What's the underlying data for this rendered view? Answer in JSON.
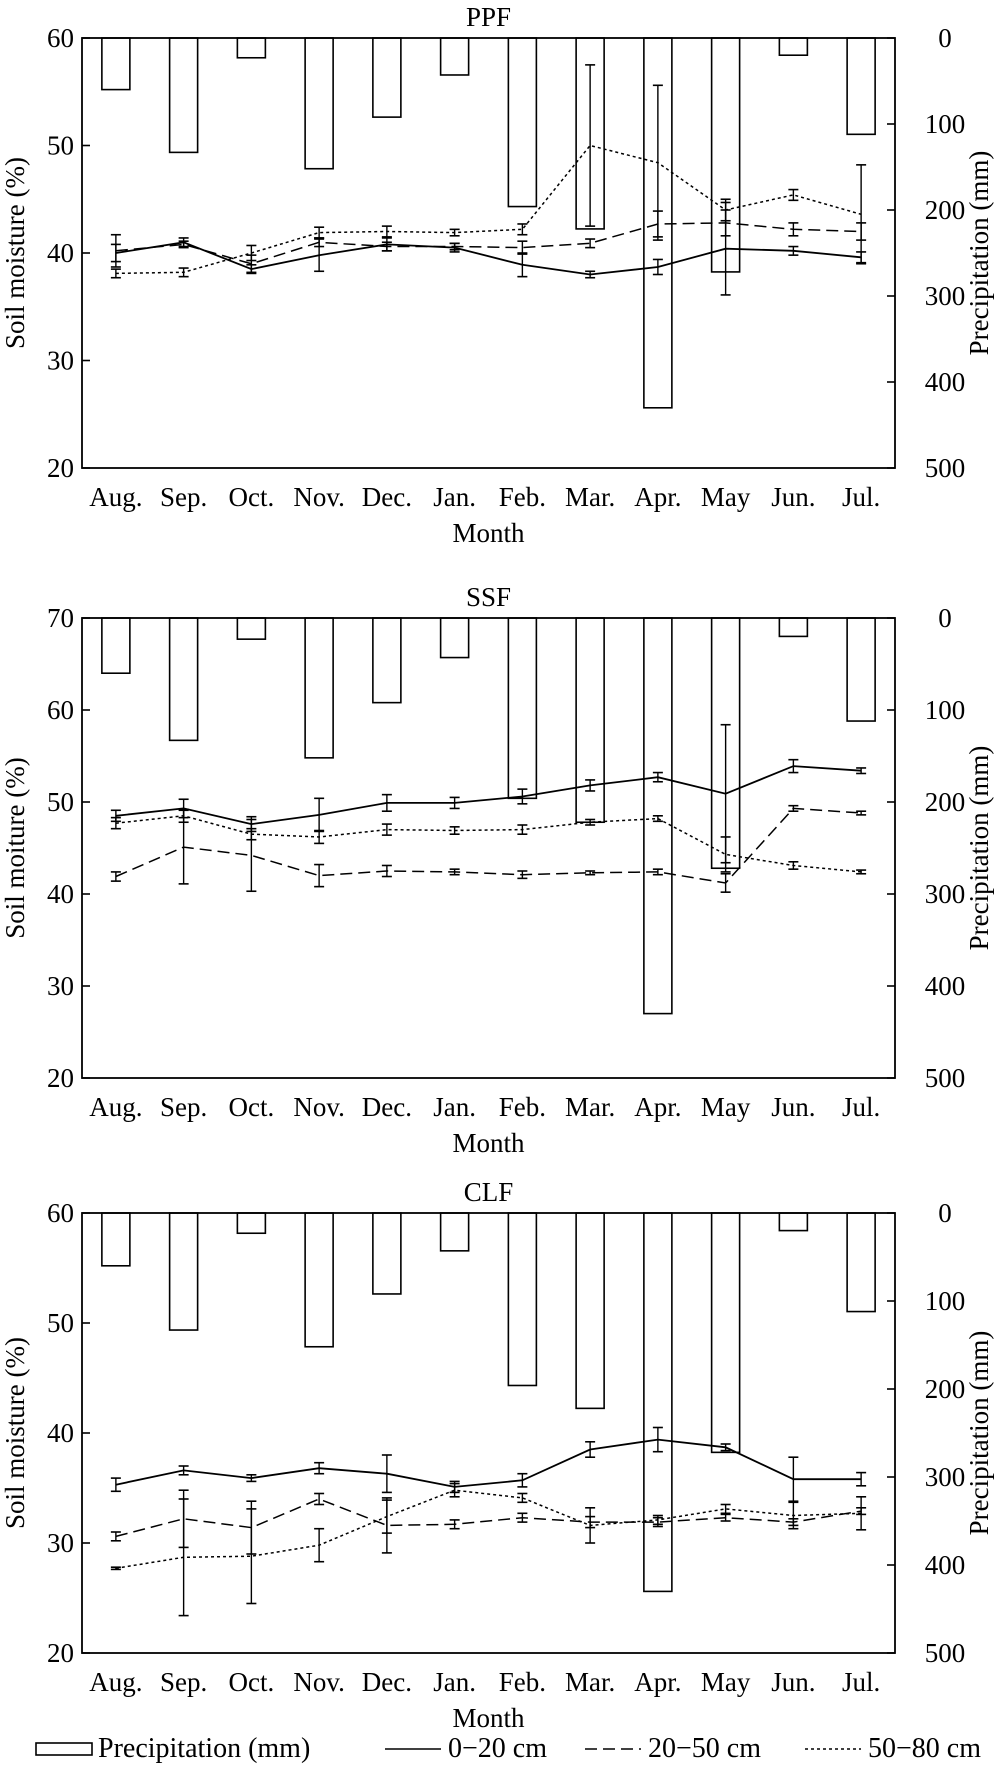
{
  "chart_data": [
    {
      "type": "bar+line",
      "title": "PPF",
      "xlabel": "Month",
      "ylabel": "Soil moisture (%)",
      "y2label": "Precipitation (mm)",
      "ylim": [
        20,
        60
      ],
      "y2lim": [
        0,
        500
      ],
      "y2_inverted": true,
      "categories": [
        "Aug.",
        "Sep.",
        "Oct.",
        "Nov.",
        "Dec.",
        "Jan.",
        "Feb.",
        "Mar.",
        "Apr.",
        "May",
        "Jun.",
        "Jul."
      ],
      "precipitation": [
        60,
        133,
        23,
        152,
        92,
        43,
        196,
        222,
        430,
        272,
        20,
        112
      ],
      "series": [
        {
          "name": "0−20 cm",
          "style": "solid",
          "values": [
            40.0,
            41.0,
            38.5,
            39.8,
            40.8,
            40.5,
            38.9,
            38.0,
            38.7,
            40.4,
            40.2,
            39.6
          ],
          "errors": [
            0.8,
            0.4,
            0.4,
            1.5,
            0.6,
            0.4,
            1.1,
            0.3,
            0.7,
            4.3,
            0.4,
            0.5
          ]
        },
        {
          "name": "20−50 cm",
          "style": "dashed",
          "values": [
            40.2,
            40.8,
            39.0,
            41.0,
            40.6,
            40.6,
            40.5,
            40.9,
            42.7,
            42.8,
            42.2,
            42.0
          ],
          "errors": [
            1.5,
            0.3,
            0.8,
            0.4,
            0.4,
            0.3,
            0.6,
            0.4,
            1.2,
            1.2,
            0.6,
            0.8
          ]
        },
        {
          "name": "50−80 cm",
          "style": "dotted",
          "values": [
            38.1,
            38.2,
            40.0,
            41.9,
            42.0,
            41.9,
            42.2,
            50.0,
            48.4,
            44.0,
            45.4,
            43.6
          ],
          "errors": [
            0.4,
            0.4,
            0.7,
            0.5,
            0.5,
            0.3,
            0.5,
            7.5,
            7.2,
            1.0,
            0.5,
            4.6
          ]
        }
      ]
    },
    {
      "type": "bar+line",
      "title": "SSF",
      "xlabel": "Month",
      "ylabel": "Soil moiture (%)",
      "y2label": "Precipitation (mm)",
      "ylim": [
        20,
        70
      ],
      "y2lim": [
        0,
        500
      ],
      "y2_inverted": true,
      "categories": [
        "Aug.",
        "Sep.",
        "Oct.",
        "Nov.",
        "Dec.",
        "Jan.",
        "Feb.",
        "Mar.",
        "Apr.",
        "May",
        "Jun.",
        "Jul."
      ],
      "precipitation": [
        60,
        133,
        23,
        152,
        92,
        43,
        196,
        222,
        430,
        272,
        20,
        112
      ],
      "series": [
        {
          "name": "0−20 cm",
          "style": "solid",
          "values": [
            48.5,
            49.3,
            47.6,
            48.6,
            49.9,
            49.9,
            50.6,
            51.8,
            52.7,
            50.9,
            53.9,
            53.4
          ],
          "errors": [
            0.6,
            1.0,
            0.8,
            1.8,
            0.9,
            0.6,
            0.8,
            0.6,
            0.5,
            7.5,
            0.7,
            0.3
          ]
        },
        {
          "name": "20−50 cm",
          "style": "dashed",
          "values": [
            41.9,
            45.1,
            44.2,
            42.0,
            42.5,
            42.4,
            42.1,
            42.3,
            42.4,
            41.2,
            49.3,
            48.8
          ],
          "errors": [
            0.5,
            4.0,
            3.9,
            1.2,
            0.6,
            0.3,
            0.4,
            0.2,
            0.3,
            1.0,
            0.3,
            0.2
          ]
        },
        {
          "name": "50−80 cm",
          "style": "dotted",
          "values": [
            47.7,
            48.5,
            46.5,
            46.2,
            47.0,
            46.9,
            47.0,
            47.8,
            48.2,
            44.3,
            43.1,
            42.4
          ],
          "errors": [
            0.6,
            0.7,
            0.6,
            0.7,
            0.6,
            0.4,
            0.5,
            0.3,
            0.3,
            1.9,
            0.4,
            0.2
          ]
        }
      ]
    },
    {
      "type": "bar+line",
      "title": "CLF",
      "xlabel": "Month",
      "ylabel": "Soil moisture (%)",
      "y2label": "Precipitation (mm)",
      "ylim": [
        20,
        60
      ],
      "y2lim": [
        0,
        500
      ],
      "y2_inverted": true,
      "categories": [
        "Aug.",
        "Sep.",
        "Oct.",
        "Nov.",
        "Dec.",
        "Jan.",
        "Feb.",
        "Mar.",
        "Apr.",
        "May",
        "Jun.",
        "Jul."
      ],
      "precipitation": [
        60,
        133,
        23,
        152,
        92,
        43,
        196,
        222,
        430,
        272,
        20,
        112
      ],
      "series": [
        {
          "name": "0−20 cm",
          "style": "solid",
          "values": [
            35.3,
            36.6,
            35.9,
            36.8,
            36.3,
            35.1,
            35.7,
            38.5,
            39.4,
            38.7,
            35.8,
            35.8
          ],
          "errors": [
            0.6,
            0.4,
            0.3,
            0.5,
            1.7,
            0.5,
            0.6,
            0.7,
            1.1,
            0.3,
            2.0,
            0.6
          ]
        },
        {
          "name": "20−50 cm",
          "style": "dashed",
          "values": [
            30.6,
            32.2,
            31.4,
            34.0,
            31.6,
            31.7,
            32.3,
            31.9,
            31.9,
            32.3,
            31.9,
            32.9
          ],
          "errors": [
            0.4,
            2.6,
            2.4,
            0.5,
            2.5,
            0.4,
            0.4,
            0.5,
            0.4,
            0.3,
            0.3,
            0.3
          ]
        },
        {
          "name": "50−80 cm",
          "style": "dotted",
          "values": [
            27.7,
            28.7,
            28.8,
            29.8,
            32.4,
            34.8,
            34.1,
            31.6,
            32.1,
            33.1,
            32.5,
            32.7
          ],
          "errors": [
            0.1,
            5.3,
            4.3,
            1.5,
            1.5,
            0.6,
            0.4,
            1.6,
            0.4,
            0.4,
            1.2,
            1.5
          ]
        }
      ]
    }
  ],
  "legend": {
    "position": "bottom",
    "items": [
      {
        "key": "precipitation",
        "label": "Precipitation (mm)"
      },
      {
        "key": "solid",
        "label": "0−20 cm"
      },
      {
        "key": "dashed",
        "label": "20−50 cm"
      },
      {
        "key": "dotted",
        "label": "50−80 cm"
      }
    ]
  }
}
